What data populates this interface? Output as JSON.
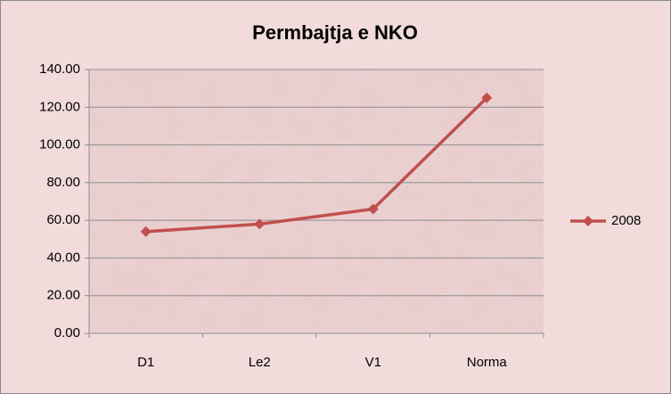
{
  "chart_data": {
    "type": "line",
    "title": "Permbajtja e NKO",
    "categories": [
      "D1",
      "Le2",
      "V1",
      "Norma"
    ],
    "series": [
      {
        "name": "2008",
        "color": "#c0504d",
        "values": [
          54,
          58,
          66,
          125
        ]
      }
    ],
    "ylim": [
      0,
      140
    ],
    "yticks": [
      {
        "value": 0,
        "label": "0.00"
      },
      {
        "value": 20,
        "label": "20.00"
      },
      {
        "value": 40,
        "label": "40.00"
      },
      {
        "value": 60,
        "label": "60.00"
      },
      {
        "value": 80,
        "label": "80.00"
      },
      {
        "value": 100,
        "label": "100.00"
      },
      {
        "value": 120,
        "label": "120.00"
      },
      {
        "value": 140,
        "label": "140.00"
      }
    ],
    "grid": true,
    "legend": "right"
  }
}
